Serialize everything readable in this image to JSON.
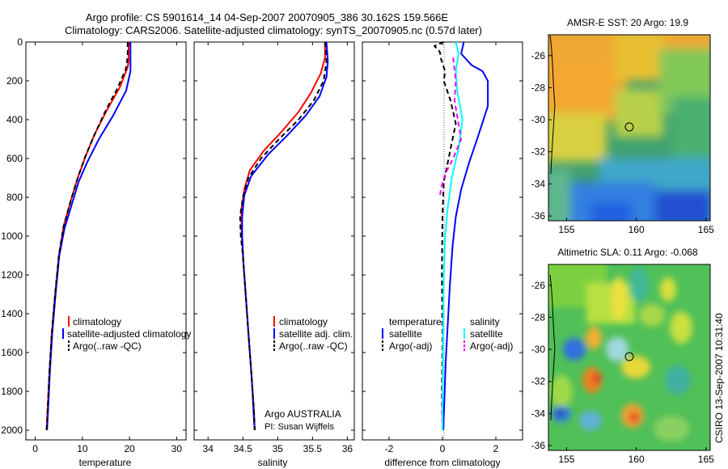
{
  "header": {
    "line1": "Argo profile: CS 5901614_14 04-Sep-2007 20070905_386 30.162S 159.566E",
    "line2": "Climatology: CARS2006. Satellite-adjusted climatology: synTS_20070905.nc (0.57d later)"
  },
  "credits": {
    "argo": "Argo AUSTRALIA",
    "pi": "PI: Susan Wijffels",
    "stamp": "CSIRO 13-Sep-2007 10:31:40"
  },
  "colors": {
    "climatology": "#ff0000",
    "satellite": "#0000ff",
    "argo": "#000000",
    "sal_satellite": "#00ffff",
    "sal_argo": "#ff00ff"
  },
  "chart_data": [
    {
      "type": "line",
      "panel": "temperature",
      "xlabel": "temperature",
      "ylabel": "",
      "xlim": [
        -2,
        32
      ],
      "ylim": [
        2050,
        0
      ],
      "xticks": [
        "0",
        "10",
        "20",
        "30"
      ],
      "yticks": [
        "0",
        "200",
        "400",
        "600",
        "800",
        "1000",
        "1200",
        "1400",
        "1600",
        "1800",
        "2000"
      ],
      "legend": [
        "climatology",
        "satellite-adjusted climatology",
        "Argo(..raw -QC)"
      ],
      "series": [
        {
          "name": "climatology",
          "color": "#ff0000",
          "dash": "solid",
          "points": [
            [
              19.8,
              0
            ],
            [
              19.8,
              100
            ],
            [
              19.6,
              130
            ],
            [
              18,
              230
            ],
            [
              15,
              360
            ],
            [
              12.5,
              480
            ],
            [
              10.5,
              600
            ],
            [
              9,
              700
            ],
            [
              7.5,
              820
            ],
            [
              6,
              950
            ],
            [
              5,
              1100
            ],
            [
              4.2,
              1300
            ],
            [
              3.5,
              1500
            ],
            [
              3,
              1700
            ],
            [
              2.6,
              1900
            ],
            [
              2.4,
              2000
            ]
          ]
        },
        {
          "name": "satellite-adjusted climatology",
          "color": "#0000ff",
          "dash": "solid",
          "points": [
            [
              20.2,
              0
            ],
            [
              20.2,
              150
            ],
            [
              19.3,
              250
            ],
            [
              16.5,
              380
            ],
            [
              13.5,
              500
            ],
            [
              11,
              620
            ],
            [
              9.2,
              720
            ],
            [
              7.7,
              840
            ],
            [
              6.2,
              960
            ],
            [
              5.1,
              1100
            ],
            [
              4.3,
              1300
            ],
            [
              3.6,
              1500
            ],
            [
              3.1,
              1700
            ],
            [
              2.7,
              1900
            ],
            [
              2.5,
              2000
            ]
          ]
        },
        {
          "name": "Argo(..raw -QC)",
          "color": "#000000",
          "dash": "dashed",
          "points": [
            [
              19.6,
              0
            ],
            [
              19.6,
              80
            ],
            [
              19.2,
              140
            ],
            [
              17.4,
              240
            ],
            [
              15,
              350
            ],
            [
              12.7,
              470
            ],
            [
              10.6,
              590
            ],
            [
              9,
              700
            ],
            [
              7.5,
              820
            ],
            [
              6,
              950
            ],
            [
              5,
              1100
            ],
            [
              4.2,
              1300
            ],
            [
              3.5,
              1500
            ],
            [
              3,
              1700
            ],
            [
              2.6,
              1900
            ],
            [
              2.4,
              2000
            ]
          ]
        }
      ]
    },
    {
      "type": "line",
      "panel": "salinity",
      "xlabel": "salinity",
      "ylabel": "",
      "xlim": [
        33.8,
        36.1
      ],
      "ylim": [
        2050,
        0
      ],
      "xticks": [
        "34",
        "34.5",
        "35",
        "35.5",
        "36"
      ],
      "legend": [
        "climatology",
        "satellite adj. clim.",
        "Argo(..raw -QC)"
      ],
      "series": [
        {
          "name": "climatology",
          "color": "#ff0000",
          "dash": "solid",
          "points": [
            [
              35.68,
              0
            ],
            [
              35.68,
              80
            ],
            [
              35.62,
              160
            ],
            [
              35.48,
              260
            ],
            [
              35.3,
              360
            ],
            [
              35.06,
              460
            ],
            [
              34.8,
              560
            ],
            [
              34.6,
              660
            ],
            [
              34.52,
              760
            ],
            [
              34.48,
              860
            ],
            [
              34.48,
              960
            ],
            [
              34.5,
              1100
            ],
            [
              34.54,
              1300
            ],
            [
              34.58,
              1500
            ],
            [
              34.62,
              1700
            ],
            [
              34.66,
              1900
            ],
            [
              34.67,
              2000
            ]
          ]
        },
        {
          "name": "satellite adj. clim.",
          "color": "#0000ff",
          "dash": "solid",
          "points": [
            [
              35.7,
              0
            ],
            [
              35.72,
              100
            ],
            [
              35.7,
              180
            ],
            [
              35.6,
              280
            ],
            [
              35.4,
              380
            ],
            [
              35.14,
              480
            ],
            [
              34.86,
              580
            ],
            [
              34.62,
              690
            ],
            [
              34.52,
              790
            ],
            [
              34.49,
              900
            ],
            [
              34.49,
              1000
            ],
            [
              34.51,
              1150
            ],
            [
              34.55,
              1350
            ],
            [
              34.59,
              1550
            ],
            [
              34.63,
              1750
            ],
            [
              34.66,
              1950
            ],
            [
              34.67,
              2000
            ]
          ]
        },
        {
          "name": "Argo(..raw -QC)",
          "color": "#000000",
          "dash": "dashed",
          "points": [
            [
              35.68,
              0
            ],
            [
              35.7,
              100
            ],
            [
              35.66,
              200
            ],
            [
              35.52,
              300
            ],
            [
              35.3,
              400
            ],
            [
              35.02,
              500
            ],
            [
              34.76,
              600
            ],
            [
              34.58,
              700
            ],
            [
              34.5,
              800
            ],
            [
              34.46,
              900
            ],
            [
              34.47,
              1000
            ],
            [
              34.5,
              1100
            ],
            [
              34.54,
              1300
            ],
            [
              34.58,
              1500
            ],
            [
              34.62,
              1700
            ],
            [
              34.66,
              1900
            ],
            [
              34.67,
              2000
            ]
          ]
        }
      ]
    },
    {
      "type": "line",
      "panel": "difference",
      "xlabel": "difference from climatology",
      "ylabel": "",
      "xlim": [
        -3,
        3
      ],
      "ylim": [
        2050,
        0
      ],
      "xticks": [
        "-2",
        "0",
        "2"
      ],
      "legend_temperature_title": "temperature",
      "legend_temperature": [
        "satellite",
        "Argo(-adj)"
      ],
      "legend_salinity_title": "salinity",
      "legend_salinity": [
        "satellite",
        "Argo(-adj)"
      ],
      "series": [
        {
          "name": "temperature satellite",
          "color": "#0000ff",
          "dash": "solid",
          "points": [
            [
              0.8,
              0
            ],
            [
              0.7,
              60
            ],
            [
              1.1,
              120
            ],
            [
              1.5,
              150
            ],
            [
              1.7,
              200
            ],
            [
              1.7,
              330
            ],
            [
              1.3,
              500
            ],
            [
              1.0,
              620
            ],
            [
              0.7,
              760
            ],
            [
              0.5,
              900
            ],
            [
              0.38,
              1050
            ],
            [
              0.28,
              1250
            ],
            [
              0.2,
              1450
            ],
            [
              0.12,
              1650
            ],
            [
              0.07,
              1850
            ],
            [
              0.03,
              2000
            ]
          ]
        },
        {
          "name": "temperature Argo(-adj)",
          "color": "#000000",
          "dash": "dashed",
          "points": [
            [
              0.05,
              0
            ],
            [
              -0.3,
              20
            ],
            [
              -0.1,
              50
            ],
            [
              -0.05,
              90
            ],
            [
              0.1,
              150
            ],
            [
              0.05,
              200
            ],
            [
              0.3,
              300
            ],
            [
              0.5,
              420
            ],
            [
              0.35,
              520
            ],
            [
              0.2,
              620
            ],
            [
              0.05,
              720
            ],
            [
              0,
              900
            ],
            [
              -0.02,
              1200
            ],
            [
              0,
              1500
            ],
            [
              -0.02,
              1800
            ],
            [
              0,
              2000
            ]
          ]
        },
        {
          "name": "salinity satellite",
          "color": "#00ffff",
          "dash": "solid",
          "points": [
            [
              0.5,
              0
            ],
            [
              0.6,
              60
            ],
            [
              0.5,
              150
            ],
            [
              0.55,
              250
            ],
            [
              0.75,
              400
            ],
            [
              0.6,
              550
            ],
            [
              0.35,
              700
            ],
            [
              0.2,
              850
            ],
            [
              0.1,
              1000
            ],
            [
              0.05,
              1200
            ],
            [
              0.02,
              1500
            ],
            [
              0,
              1800
            ],
            [
              0,
              2000
            ]
          ]
        },
        {
          "name": "salinity Argo(-adj)",
          "color": "#ff00ff",
          "dash": "dashed",
          "points": [
            [
              0.4,
              80
            ],
            [
              0.5,
              200
            ],
            [
              0.45,
              300
            ],
            [
              0.6,
              420
            ],
            [
              0.7,
              500
            ],
            [
              0.4,
              600
            ],
            [
              0.1,
              680
            ],
            [
              -0.05,
              750
            ],
            [
              -0.1,
              800
            ]
          ]
        }
      ]
    },
    {
      "type": "heatmap",
      "panel": "sst_map",
      "title": "AMSR-E SST: 20 Argo: 19.9",
      "xlim": [
        153.7,
        165.3
      ],
      "ylim": [
        -36.3,
        -24.7
      ],
      "xticks": [
        "155",
        "160",
        "165"
      ],
      "yticks": [
        "-26",
        "-28",
        "-30",
        "-32",
        "-34",
        "-36"
      ],
      "profile_location": [
        159.566,
        -30.162
      ]
    },
    {
      "type": "heatmap",
      "panel": "sla_map",
      "title": "Altimetric SLA: 0.11 Argo: -0.068",
      "xlim": [
        153.7,
        165.3
      ],
      "ylim": [
        -36.3,
        -24.7
      ],
      "xticks": [
        "155",
        "160",
        "165"
      ],
      "yticks": [
        "-26",
        "-28",
        "-30",
        "-32",
        "-34",
        "-36"
      ],
      "profile_location": [
        159.566,
        -30.162
      ]
    }
  ]
}
